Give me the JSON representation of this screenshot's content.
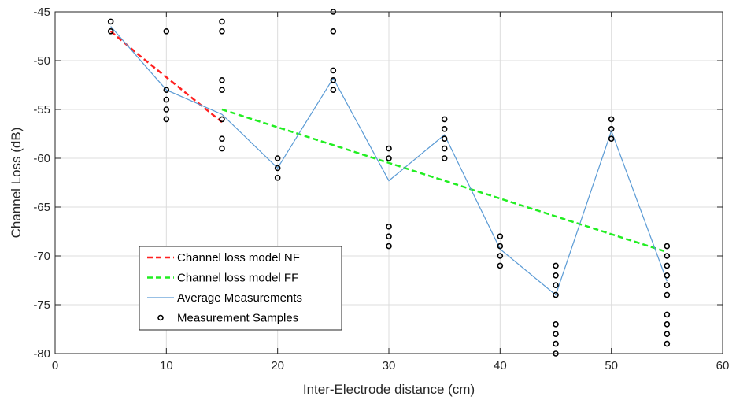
{
  "chart_data": {
    "type": "line",
    "title": "",
    "xlabel": "Inter-Electrode distance (cm)",
    "ylabel": "Channel Loss (dB)",
    "xlim": [
      0,
      60
    ],
    "ylim": [
      -80,
      -45
    ],
    "xticks": [
      0,
      10,
      20,
      30,
      40,
      50,
      60
    ],
    "yticks": [
      -80,
      -75,
      -70,
      -65,
      -60,
      -55,
      -50,
      -45
    ],
    "grid": true,
    "legend_position": "bottom-left",
    "series": [
      {
        "name": "Channel loss model NF",
        "style": "dashed",
        "color": "#ff2020",
        "x": [
          5,
          7.5,
          10,
          12.5,
          15
        ],
        "y": [
          -47,
          -49.4,
          -51.7,
          -54,
          -56.3
        ]
      },
      {
        "name": "Channel loss model FF",
        "style": "dashed",
        "color": "#22ee22",
        "x": [
          15,
          55
        ],
        "y": [
          -55,
          -69.6
        ]
      },
      {
        "name": "Average Measurements",
        "style": "solid",
        "color": "#5b9bd5",
        "x": [
          5,
          10,
          15,
          20,
          25,
          30,
          35,
          40,
          45,
          50,
          55
        ],
        "y": [
          -46.5,
          -53,
          -55.5,
          -61,
          -51.8,
          -62.3,
          -57.6,
          -69.3,
          -74,
          -57.2,
          -72.6
        ]
      },
      {
        "name": "Measurement Samples",
        "style": "markers",
        "color": "#000000",
        "points": [
          [
            5,
            -46
          ],
          [
            5,
            -47
          ],
          [
            10,
            -47
          ],
          [
            10,
            -53
          ],
          [
            10,
            -54
          ],
          [
            10,
            -55
          ],
          [
            10,
            -56
          ],
          [
            15,
            -46
          ],
          [
            15,
            -47
          ],
          [
            15,
            -52
          ],
          [
            15,
            -53
          ],
          [
            15,
            -56
          ],
          [
            15,
            -58
          ],
          [
            15,
            -59
          ],
          [
            20,
            -60
          ],
          [
            20,
            -61
          ],
          [
            20,
            -62
          ],
          [
            25,
            -45
          ],
          [
            25,
            -47
          ],
          [
            25,
            -51
          ],
          [
            25,
            -52
          ],
          [
            25,
            -53
          ],
          [
            30,
            -59
          ],
          [
            30,
            -60
          ],
          [
            30,
            -67
          ],
          [
            30,
            -68
          ],
          [
            30,
            -69
          ],
          [
            35,
            -56
          ],
          [
            35,
            -57
          ],
          [
            35,
            -58
          ],
          [
            35,
            -59
          ],
          [
            35,
            -60
          ],
          [
            40,
            -68
          ],
          [
            40,
            -69
          ],
          [
            40,
            -70
          ],
          [
            40,
            -71
          ],
          [
            45,
            -71
          ],
          [
            45,
            -72
          ],
          [
            45,
            -73
          ],
          [
            45,
            -74
          ],
          [
            45,
            -77
          ],
          [
            45,
            -78
          ],
          [
            45,
            -79
          ],
          [
            45,
            -80
          ],
          [
            50,
            -56
          ],
          [
            50,
            -57
          ],
          [
            50,
            -58
          ],
          [
            55,
            -69
          ],
          [
            55,
            -70
          ],
          [
            55,
            -71
          ],
          [
            55,
            -72
          ],
          [
            55,
            -73
          ],
          [
            55,
            -74
          ],
          [
            55,
            -76
          ],
          [
            55,
            -77
          ],
          [
            55,
            -78
          ],
          [
            55,
            -79
          ]
        ]
      }
    ]
  }
}
